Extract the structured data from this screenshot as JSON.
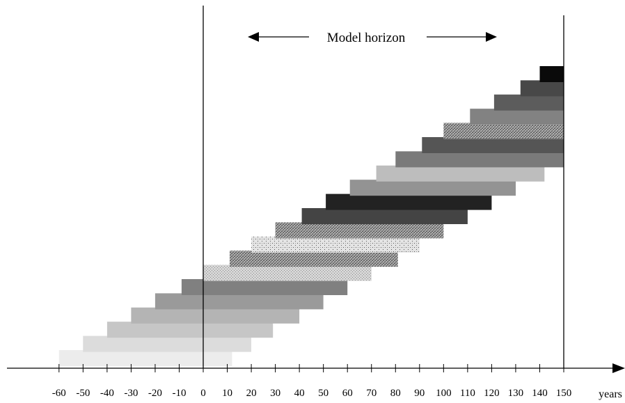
{
  "chart_data": {
    "type": "bar",
    "orientation": "horizontal",
    "title": "",
    "annotation": "Model horizon",
    "xlabel": "years",
    "ylabel": "",
    "xlim": [
      -60,
      150
    ],
    "x_ticks": [
      -60,
      -50,
      -40,
      -30,
      -20,
      -10,
      0,
      10,
      20,
      30,
      40,
      50,
      60,
      70,
      80,
      90,
      100,
      110,
      120,
      130,
      140,
      150
    ],
    "reference_lines": [
      0,
      150
    ],
    "grid": false,
    "legend": "none",
    "bars": [
      {
        "start": -60,
        "end": 12,
        "fill": "#ececec",
        "pattern": "solid"
      },
      {
        "start": -50,
        "end": 20,
        "fill": "#dcdcdc",
        "pattern": "solid"
      },
      {
        "start": -40,
        "end": 29,
        "fill": "#c6c6c6",
        "pattern": "solid"
      },
      {
        "start": -30,
        "end": 40,
        "fill": "#b4b4b4",
        "pattern": "solid"
      },
      {
        "start": -20,
        "end": 50,
        "fill": "#9a9a9a",
        "pattern": "solid"
      },
      {
        "start": -9,
        "end": 60,
        "fill": "#808080",
        "pattern": "solid"
      },
      {
        "start": 0,
        "end": 70,
        "fill": "#c8c8c8",
        "pattern": "stipple-light"
      },
      {
        "start": 11,
        "end": 81,
        "fill": "#8c8c8c",
        "pattern": "stipple-dark"
      },
      {
        "start": 20,
        "end": 90,
        "fill": "#e2e2e2",
        "pattern": "dots"
      },
      {
        "start": 30,
        "end": 100,
        "fill": "#999999",
        "pattern": "stipple-dark"
      },
      {
        "start": 41,
        "end": 110,
        "fill": "#444444",
        "pattern": "solid"
      },
      {
        "start": 51,
        "end": 120,
        "fill": "#222222",
        "pattern": "solid"
      },
      {
        "start": 61,
        "end": 130,
        "fill": "#939393",
        "pattern": "solid"
      },
      {
        "start": 72,
        "end": 142,
        "fill": "#bdbdbd",
        "pattern": "solid"
      },
      {
        "start": 80,
        "end": 150,
        "fill": "#7a7a7a",
        "pattern": "solid"
      },
      {
        "start": 91,
        "end": 150,
        "fill": "#555555",
        "pattern": "solid"
      },
      {
        "start": 100,
        "end": 150,
        "fill": "#888888",
        "pattern": "stipple-dark"
      },
      {
        "start": 111,
        "end": 150,
        "fill": "#828282",
        "pattern": "solid"
      },
      {
        "start": 121,
        "end": 150,
        "fill": "#5c5c5c",
        "pattern": "solid"
      },
      {
        "start": 132,
        "end": 150,
        "fill": "#484848",
        "pattern": "solid"
      },
      {
        "start": 140,
        "end": 150,
        "fill": "#0a0a0a",
        "pattern": "solid"
      }
    ]
  }
}
